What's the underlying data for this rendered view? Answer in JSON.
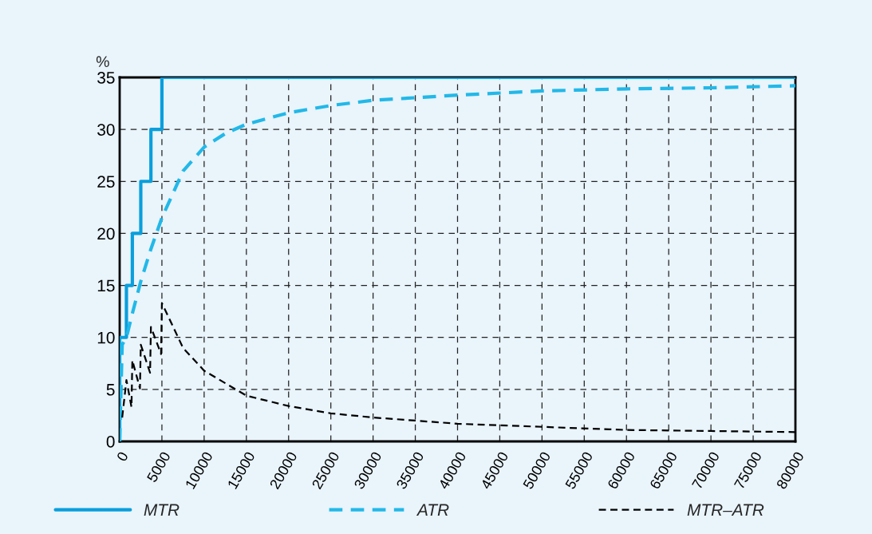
{
  "chart_data": {
    "type": "line",
    "ylabel": "%",
    "xlim": [
      0,
      80000
    ],
    "xticks": [
      0,
      5000,
      10000,
      15000,
      20000,
      25000,
      30000,
      35000,
      40000,
      45000,
      50000,
      55000,
      60000,
      65000,
      70000,
      75000,
      80000
    ],
    "ylim": [
      0,
      35
    ],
    "yticks": [
      0,
      5,
      10,
      15,
      20,
      25,
      30,
      35
    ],
    "grid": true,
    "legend": "bottom",
    "series": [
      {
        "name": "MTR",
        "type": "step",
        "color": "#0a9fdc",
        "line_style": "solid",
        "x": [
          0,
          0,
          800,
          1500,
          2500,
          3700,
          5000,
          80000
        ],
        "values": [
          0,
          10,
          15,
          20,
          25,
          30,
          35,
          35
        ]
      },
      {
        "name": "ATR",
        "color": "#22b8e8",
        "line_style": "dashed",
        "x": [
          0,
          300,
          800,
          1500,
          2500,
          3700,
          5000,
          7500,
          10000,
          12500,
          15000,
          20000,
          25000,
          30000,
          40000,
          50000,
          60000,
          70000,
          80000
        ],
        "values": [
          0,
          9.3,
          10,
          12.3,
          15.4,
          18.5,
          21.5,
          26.0,
          28.3,
          29.6,
          30.5,
          31.6,
          32.3,
          32.8,
          33.3,
          33.7,
          33.9,
          34.0,
          34.2
        ]
      },
      {
        "name": "MTR–ATR",
        "color": "#000000",
        "line_style": "dashed",
        "x": [
          300,
          800,
          1400,
          1500,
          2400,
          2500,
          3600,
          3700,
          4900,
          5000,
          7500,
          10000,
          15000,
          20000,
          25000,
          30000,
          40000,
          50000,
          60000,
          70000,
          80000
        ],
        "values": [
          2.3,
          5.9,
          3.3,
          7.8,
          5.1,
          9.3,
          6.6,
          11.0,
          8.4,
          13.3,
          9.0,
          6.8,
          4.4,
          3.4,
          2.7,
          2.3,
          1.7,
          1.4,
          1.1,
          1.0,
          0.9
        ]
      }
    ]
  }
}
